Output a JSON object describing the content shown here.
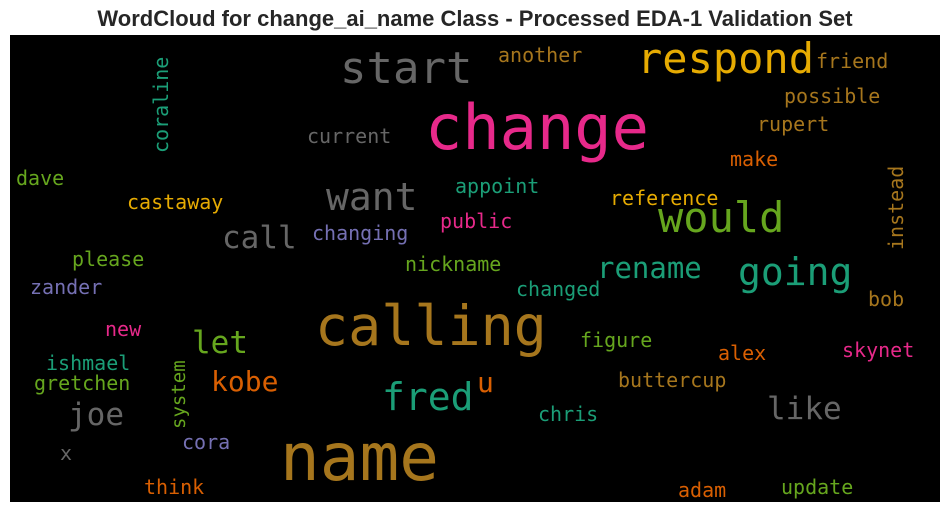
{
  "chart_data": {
    "type": "wordcloud",
    "title": "WordCloud for change_ai_name Class - Processed EDA-1 Validation Set",
    "background": "#000000",
    "colors": {
      "pink": "#e7298a",
      "gold": "#e6ab02",
      "brown": "#a6761d",
      "gray": "#666666",
      "green": "#66a61e",
      "teal": "#1b9e77",
      "orange": "#d95f02",
      "purple": "#7570b3"
    },
    "words": [
      {
        "text": "name",
        "color": "brown"
      },
      {
        "text": "change",
        "color": "pink"
      },
      {
        "text": "calling",
        "color": "brown"
      },
      {
        "text": "start",
        "color": "gray"
      },
      {
        "text": "respond",
        "color": "gold"
      },
      {
        "text": "would",
        "color": "green"
      },
      {
        "text": "want",
        "color": "gray"
      },
      {
        "text": "going",
        "color": "teal"
      },
      {
        "text": "fred",
        "color": "teal"
      },
      {
        "text": "call",
        "color": "gray"
      },
      {
        "text": "rename",
        "color": "teal"
      },
      {
        "text": "like",
        "color": "gray"
      },
      {
        "text": "joe",
        "color": "gray"
      },
      {
        "text": "let",
        "color": "green"
      },
      {
        "text": "kobe",
        "color": "orange"
      },
      {
        "text": "u",
        "color": "orange"
      },
      {
        "text": "coraline",
        "color": "teal"
      },
      {
        "text": "instead",
        "color": "brown"
      },
      {
        "text": "system",
        "color": "green"
      },
      {
        "text": "another",
        "color": "brown"
      },
      {
        "text": "friend",
        "color": "brown"
      },
      {
        "text": "possible",
        "color": "brown"
      },
      {
        "text": "rupert",
        "color": "brown"
      },
      {
        "text": "current",
        "color": "gray"
      },
      {
        "text": "make",
        "color": "orange"
      },
      {
        "text": "dave",
        "color": "green"
      },
      {
        "text": "appoint",
        "color": "teal"
      },
      {
        "text": "castaway",
        "color": "gold"
      },
      {
        "text": "reference",
        "color": "gold"
      },
      {
        "text": "public",
        "color": "pink"
      },
      {
        "text": "changing",
        "color": "purple"
      },
      {
        "text": "please",
        "color": "green"
      },
      {
        "text": "nickname",
        "color": "green"
      },
      {
        "text": "zander",
        "color": "purple"
      },
      {
        "text": "changed",
        "color": "teal"
      },
      {
        "text": "bob",
        "color": "brown"
      },
      {
        "text": "new",
        "color": "pink"
      },
      {
        "text": "figure",
        "color": "green"
      },
      {
        "text": "skynet",
        "color": "pink"
      },
      {
        "text": "ishmael",
        "color": "teal"
      },
      {
        "text": "alex",
        "color": "orange"
      },
      {
        "text": "gretchen",
        "color": "green"
      },
      {
        "text": "buttercup",
        "color": "brown"
      },
      {
        "text": "chris",
        "color": "teal"
      },
      {
        "text": "cora",
        "color": "purple"
      },
      {
        "text": "x",
        "color": "gray"
      },
      {
        "text": "think",
        "color": "orange"
      },
      {
        "text": "adam",
        "color": "orange"
      },
      {
        "text": "update",
        "color": "green"
      }
    ]
  }
}
